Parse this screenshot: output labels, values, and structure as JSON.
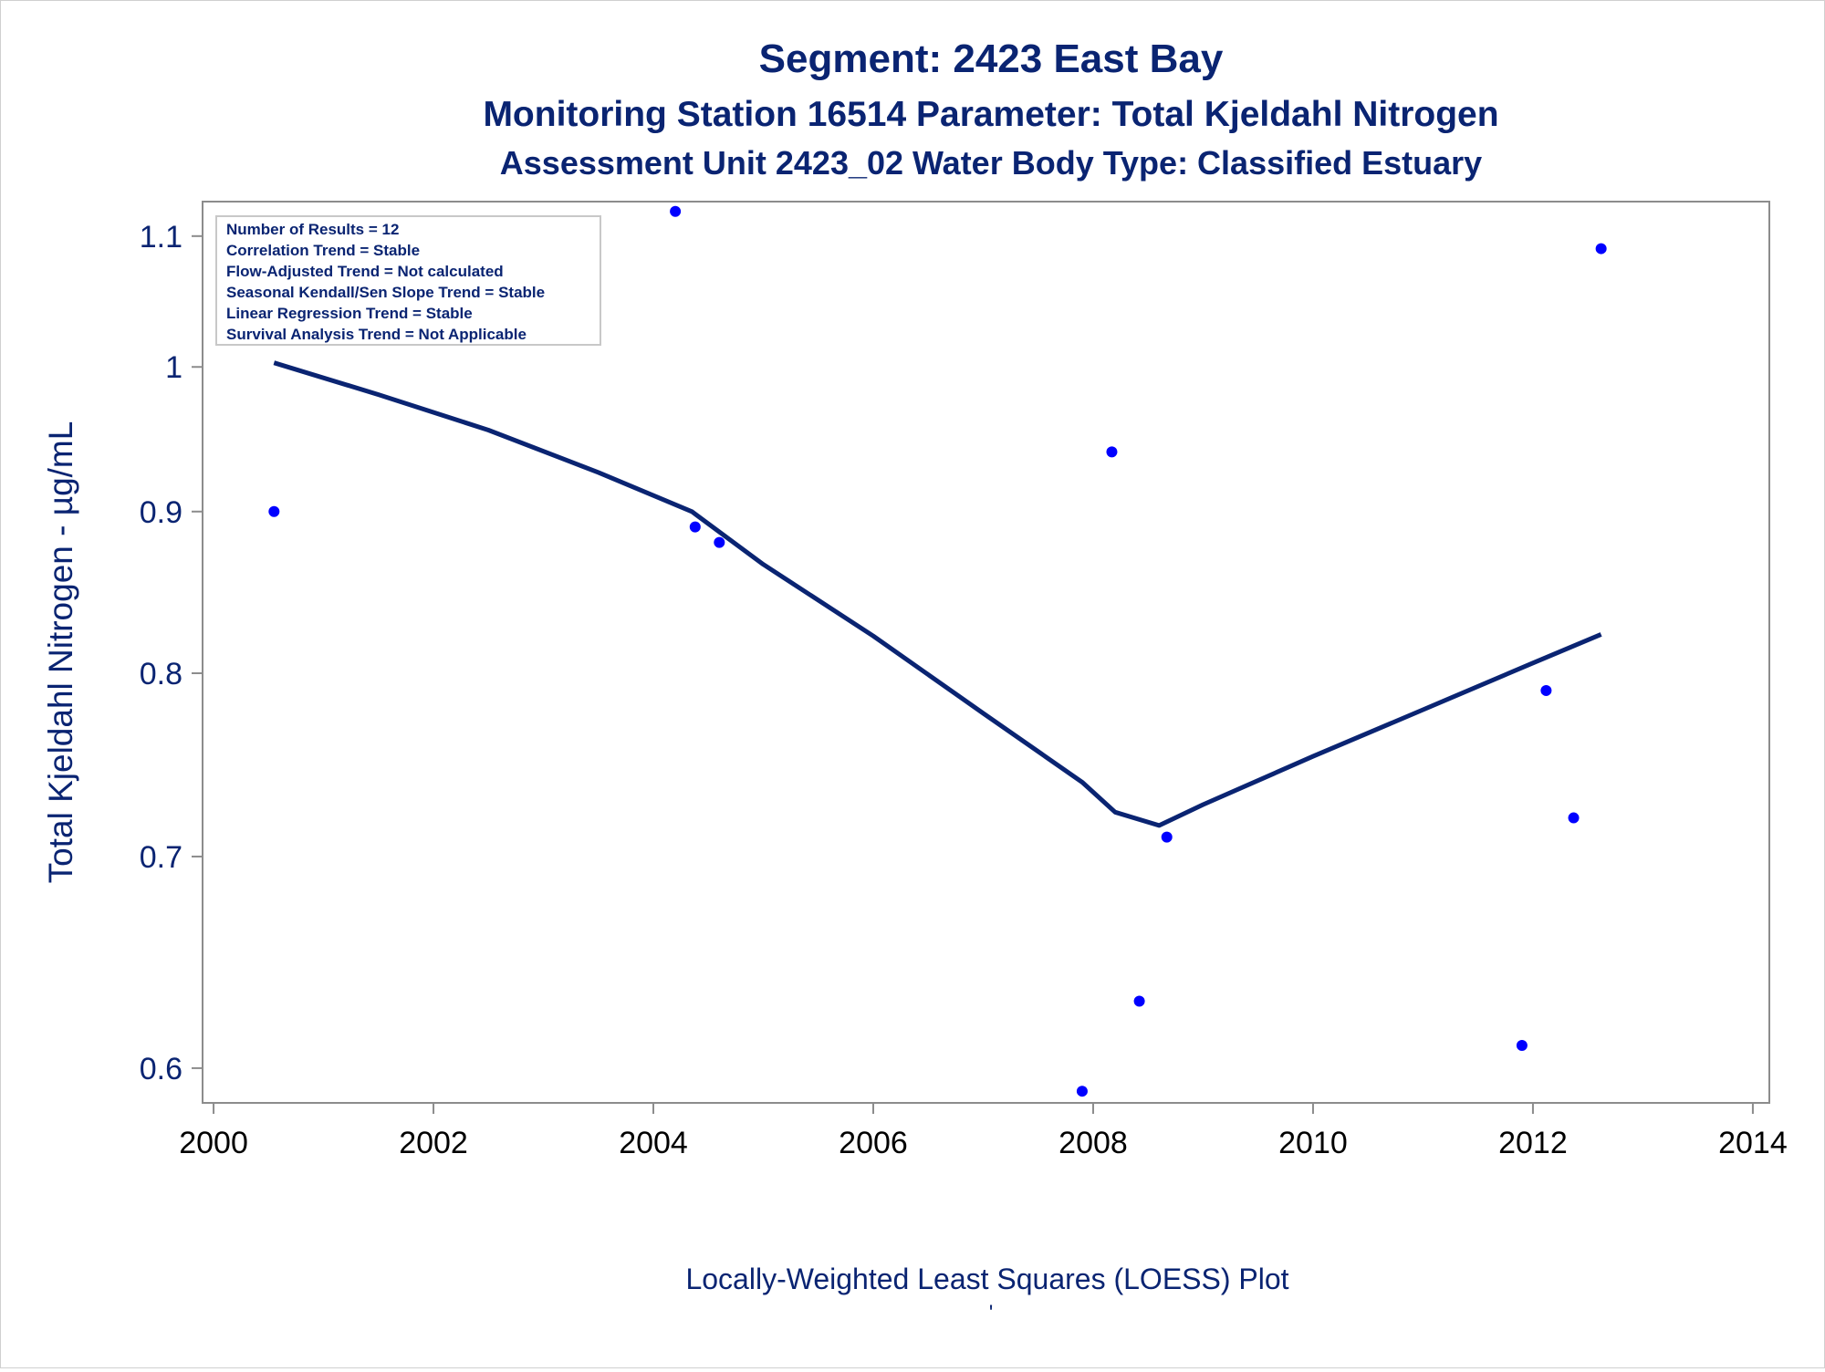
{
  "chart_data": {
    "type": "scatter",
    "title": "Segment: 2423  East Bay",
    "subtitle_1": "Monitoring Station 16514 Parameter: Total Kjeldahl Nitrogen",
    "subtitle_2": "Assessment Unit 2423_02   Water Body Type: Classified Estuary",
    "xlabel": "",
    "ylabel": "Total Kjeldahl Nitrogen -  µg/mL",
    "footnote": "Locally-Weighted Least Squares (LOESS) Plot",
    "footnote_mark": "'",
    "y_scale": "log",
    "xlim": [
      1999.9,
      2014.15
    ],
    "ylim": [
      0.585,
      1.128
    ],
    "x_ticks": [
      2000,
      2002,
      2004,
      2006,
      2008,
      2010,
      2012,
      2014
    ],
    "x_tick_labels": [
      "2000",
      "2002",
      "2004",
      "2006",
      "2008",
      "2010",
      "2012",
      "2014"
    ],
    "y_ticks": [
      0.6,
      0.7,
      0.8,
      0.9,
      1.0,
      1.1
    ],
    "y_tick_labels": [
      "0.6",
      "0.7",
      "0.8",
      "0.9",
      "1",
      "1.1"
    ],
    "grid": false,
    "legend_position": "top-left",
    "stats_box": [
      "Number of Results = 12",
      "Correlation Trend = Stable",
      "Flow-Adjusted Trend = Not calculated",
      "Seasonal Kendall/Sen Slope Trend = Stable",
      "Linear Regression Trend = Stable",
      "Survival Analysis Trend = Not Applicable"
    ],
    "series": [
      {
        "kind": "scatter",
        "color": "#0000ff",
        "points": [
          {
            "x": 2000.55,
            "y": 0.9
          },
          {
            "x": 2004.2,
            "y": 1.12
          },
          {
            "x": 2004.38,
            "y": 0.89
          },
          {
            "x": 2004.6,
            "y": 0.88
          },
          {
            "x": 2007.9,
            "y": 0.59
          },
          {
            "x": 2008.17,
            "y": 0.94
          },
          {
            "x": 2008.42,
            "y": 0.63
          },
          {
            "x": 2008.67,
            "y": 0.71
          },
          {
            "x": 2011.9,
            "y": 0.61
          },
          {
            "x": 2012.12,
            "y": 0.79
          },
          {
            "x": 2012.37,
            "y": 0.72
          },
          {
            "x": 2012.62,
            "y": 1.09
          }
        ]
      },
      {
        "kind": "line",
        "color": "#0a2472",
        "points": [
          {
            "x": 2000.55,
            "y": 1.003
          },
          {
            "x": 2001.5,
            "y": 0.98
          },
          {
            "x": 2002.5,
            "y": 0.955
          },
          {
            "x": 2003.5,
            "y": 0.926
          },
          {
            "x": 2004.35,
            "y": 0.9
          },
          {
            "x": 2005.0,
            "y": 0.866
          },
          {
            "x": 2006.0,
            "y": 0.822
          },
          {
            "x": 2007.0,
            "y": 0.777
          },
          {
            "x": 2007.9,
            "y": 0.739
          },
          {
            "x": 2008.2,
            "y": 0.723
          },
          {
            "x": 2008.6,
            "y": 0.716
          },
          {
            "x": 2009.0,
            "y": 0.727
          },
          {
            "x": 2010.0,
            "y": 0.753
          },
          {
            "x": 2011.0,
            "y": 0.779
          },
          {
            "x": 2012.0,
            "y": 0.806
          },
          {
            "x": 2012.62,
            "y": 0.823
          }
        ]
      }
    ]
  }
}
